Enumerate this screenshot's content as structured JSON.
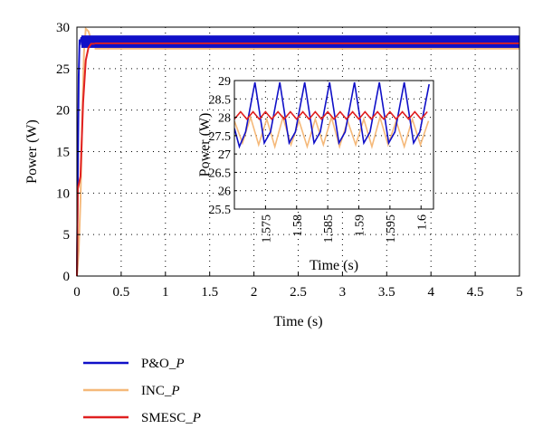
{
  "chart_data": [
    {
      "type": "line",
      "title": "",
      "xlabel": "Time (s)",
      "ylabel": "Power (W)",
      "xlim": [
        0,
        5
      ],
      "ylim": [
        0,
        30
      ],
      "xticks": [
        "0",
        "0.5",
        "1",
        "1.5",
        "2",
        "2.5",
        "3",
        "3.5",
        "4",
        "4.5",
        "5"
      ],
      "yticks": [
        "0",
        "5",
        "10",
        "15",
        "20",
        "25",
        "30"
      ],
      "grid": true,
      "legend_position": "below-left",
      "series": [
        {
          "name": "P&O_P",
          "name_main": "P&O_",
          "name_sub": "P",
          "color": "#1010c8",
          "startup": [
            [
              0,
              0
            ],
            [
              0.01,
              12
            ],
            [
              0.02,
              24
            ],
            [
              0.03,
              28.5
            ],
            [
              0.04,
              28.2
            ],
            [
              0.05,
              28.8
            ]
          ],
          "steady_min": 27.5,
          "steady_max": 29.0
        },
        {
          "name": "INC_P",
          "name_main": "INC_",
          "name_sub": "P",
          "color": "#f5b97a",
          "startup": [
            [
              0,
              0
            ],
            [
              0.02,
              3
            ],
            [
              0.04,
              9
            ],
            [
              0.06,
              19
            ],
            [
              0.08,
              27
            ],
            [
              0.1,
              29.8
            ],
            [
              0.13,
              29.5
            ],
            [
              0.16,
              28.5
            ],
            [
              0.2,
              28
            ]
          ],
          "steady_min": 27.3,
          "steady_max": 27.9
        },
        {
          "name": "SMESC_P",
          "name_main": "SMESC_",
          "name_sub": "P",
          "color": "#e02020",
          "startup": [
            [
              0,
              0
            ],
            [
              0.01,
              10.5
            ],
            [
              0.04,
              12
            ],
            [
              0.07,
              21
            ],
            [
              0.1,
              26
            ],
            [
              0.13,
              27.5
            ],
            [
              0.16,
              28
            ],
            [
              0.2,
              28
            ]
          ],
          "steady_min": 27.95,
          "steady_max": 28.15
        }
      ]
    },
    {
      "type": "line",
      "title": "",
      "xlabel": "Time (s)",
      "ylabel": "Power (W)",
      "xlim": [
        1.57,
        1.602
      ],
      "ylim": [
        25.5,
        29
      ],
      "xticks": [
        "1.575",
        "1.58",
        "1.585",
        "1.59",
        "1.595",
        "1.6"
      ],
      "yticks": [
        "25.5",
        "26",
        "26.5",
        "27",
        "27.5",
        "28",
        "28.5",
        "29"
      ],
      "grid": true,
      "series": [
        {
          "name": "P&O_P",
          "color": "#1010c8",
          "x": [
            1.57,
            1.5708,
            1.5718,
            1.5733,
            1.5748,
            1.5758,
            1.5773,
            1.5788,
            1.5798,
            1.5813,
            1.5828,
            1.5838,
            1.5853,
            1.5868,
            1.5878,
            1.5893,
            1.5908,
            1.5918,
            1.5933,
            1.5948,
            1.5958,
            1.5973,
            1.5988,
            1.5998,
            1.6013
          ],
          "y": [
            27.7,
            27.2,
            27.6,
            28.95,
            27.3,
            27.6,
            28.95,
            27.3,
            27.6,
            28.95,
            27.3,
            27.6,
            28.95,
            27.3,
            27.6,
            28.95,
            27.3,
            27.6,
            28.95,
            27.3,
            27.6,
            28.95,
            27.3,
            27.6,
            28.9
          ]
        },
        {
          "name": "INC_P",
          "color": "#f5b97a",
          "x": [
            1.57,
            1.5713,
            1.5726,
            1.5739,
            1.5752,
            1.5765,
            1.5778,
            1.5791,
            1.5804,
            1.5817,
            1.583,
            1.5843,
            1.5856,
            1.5869,
            1.5882,
            1.5895,
            1.5908,
            1.5921,
            1.5934,
            1.5947,
            1.596,
            1.5973,
            1.5986,
            1.5999,
            1.6012
          ],
          "y": [
            27.9,
            27.3,
            28.0,
            27.25,
            27.95,
            27.2,
            28.0,
            27.25,
            27.9,
            27.2,
            27.95,
            27.25,
            28.0,
            27.2,
            27.9,
            27.25,
            27.95,
            27.2,
            28.0,
            27.25,
            27.9,
            27.2,
            27.95,
            27.25,
            27.9
          ]
        },
        {
          "name": "SMESC_P",
          "color": "#e02020",
          "x": [
            1.57,
            1.571,
            1.572,
            1.573,
            1.574,
            1.575,
            1.576,
            1.577,
            1.578,
            1.579,
            1.58,
            1.581,
            1.582,
            1.583,
            1.584,
            1.585,
            1.586,
            1.587,
            1.588,
            1.589,
            1.59,
            1.591,
            1.592,
            1.593,
            1.594,
            1.595,
            1.596,
            1.597,
            1.598,
            1.599,
            1.6,
            1.601
          ],
          "y": [
            27.95,
            28.15,
            27.95,
            28.15,
            27.95,
            28.15,
            27.95,
            28.15,
            27.95,
            28.15,
            27.95,
            28.15,
            27.95,
            28.15,
            27.95,
            28.15,
            27.95,
            28.15,
            27.95,
            28.15,
            27.95,
            28.15,
            27.95,
            28.15,
            27.95,
            28.15,
            27.95,
            28.15,
            27.95,
            28.15,
            27.95,
            28.15
          ]
        }
      ]
    }
  ]
}
